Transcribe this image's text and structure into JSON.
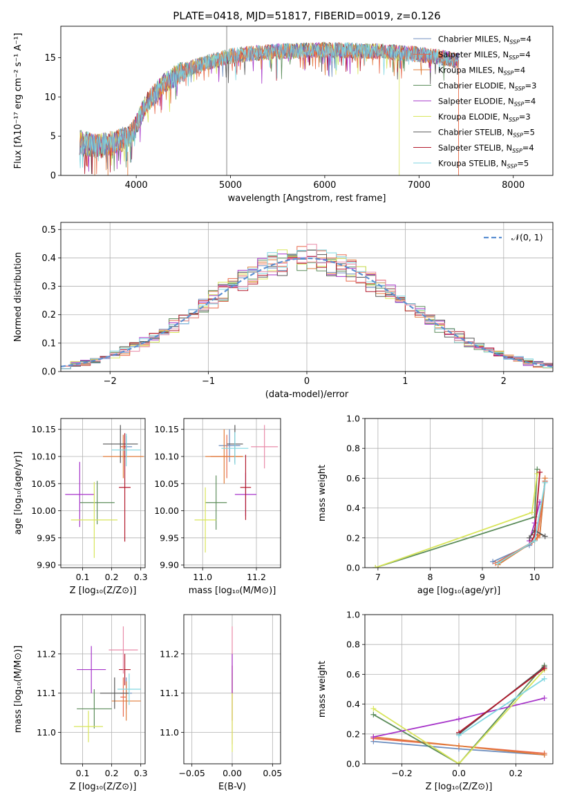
{
  "colors": {
    "series": [
      "#6c8ebf",
      "#e8684a",
      "#e07b39",
      "#5b8c5a",
      "#a633c9",
      "#d8e55a",
      "#555555",
      "#b2182b",
      "#7fd6e0"
    ],
    "normal": "#5b8fd1",
    "pink": "#e88aa8",
    "grid": "#b0b0b0"
  },
  "chart_data": [
    {
      "type": "line",
      "panel": "spectrum",
      "title": "PLATE=0418, MJD=51817, FIBERID=0019, z=0.126",
      "xlabel": "wavelength [Angstrom, rest frame]",
      "ylabel": "Flux [fλ10⁻¹⁷ erg cm⁻² s⁻¹ A⁻¹]",
      "xlim": [
        3200,
        8420
      ],
      "ylim": [
        0,
        19
      ],
      "xticks": [
        4000,
        5000,
        6000,
        7000,
        8000
      ],
      "yticks": [
        0,
        5,
        10,
        15
      ],
      "grid": false,
      "legend_position": "top-right",
      "legend": [
        {
          "model": "Chabrier MILES, N",
          "sub": "SSP",
          "tail": "=4"
        },
        {
          "model": "Salpeter MILES, N",
          "sub": "SSP",
          "tail": "=4"
        },
        {
          "model": "Kroupa MILES, N",
          "sub": "SSP",
          "tail": "=4"
        },
        {
          "model": "Chabrier ELODIE, N",
          "sub": "SSP",
          "tail": "=3"
        },
        {
          "model": "Salpeter ELODIE, N",
          "sub": "SSP",
          "tail": "=4"
        },
        {
          "model": "Kroupa ELODIE, N",
          "sub": "SSP",
          "tail": "=3"
        },
        {
          "model": "Chabrier STELIB, N",
          "sub": "SSP",
          "tail": "=5"
        },
        {
          "model": "Salpeter STELIB, N",
          "sub": "SSP",
          "tail": "=4"
        },
        {
          "model": "Kroupa STELIB, N",
          "sub": "SSP",
          "tail": "=5"
        }
      ],
      "continuum": {
        "x": [
          3400,
          3600,
          3800,
          3950,
          4100,
          4300,
          4500,
          4700,
          5000,
          5200,
          5500,
          5800,
          6000,
          6300,
          6600,
          7000,
          7200,
          7400
        ],
        "y": [
          4.2,
          3.7,
          4.3,
          5.1,
          9.0,
          11.8,
          13.3,
          14.2,
          15.2,
          15.5,
          15.8,
          15.9,
          16.0,
          15.9,
          15.8,
          15.4,
          15.1,
          14.6
        ]
      },
      "wavelength_range": [
        3400,
        7420
      ],
      "cutoffs": [
        6790,
        7420
      ]
    },
    {
      "type": "bar",
      "panel": "residuals",
      "xlabel": "(data-model)/error",
      "ylabel": "Normed distribution",
      "xlim": [
        -2.5,
        2.5
      ],
      "ylim": [
        0,
        0.525
      ],
      "xticks": [
        -2,
        -1,
        0,
        1,
        2
      ],
      "xtick_labels": [
        "−2",
        "−1",
        "0",
        "1",
        "2"
      ],
      "yticks": [
        0,
        0.1,
        0.2,
        0.3,
        0.4,
        0.5
      ],
      "ytick_labels": [
        "0.0",
        "0.1",
        "0.2",
        "0.3",
        "0.4",
        "0.5"
      ],
      "grid": true,
      "legend_position": "top-right",
      "legend": "𝒩(0, 1)",
      "bin_width": 0.1
    },
    {
      "type": "scatter",
      "panel": "age_vs_Z",
      "xlabel": "Z [log₁₀(Z/Z⊙)]",
      "ylabel": "age  [log₁₀(age/yr)]",
      "xlim": [
        0.025,
        0.315
      ],
      "ylim": [
        9.895,
        10.17
      ],
      "xticks": [
        0.1,
        0.2,
        0.3
      ],
      "xtick_labels": [
        "0.1",
        "0.2",
        "0.3"
      ],
      "yticks": [
        9.9,
        9.95,
        10.0,
        10.05,
        10.1,
        10.15
      ],
      "ytick_labels": [
        "9.90",
        "9.95",
        "10.00",
        "10.05",
        "10.10",
        "10.15"
      ],
      "points": [
        {
          "x": 0.25,
          "xerr": 0.02,
          "y": 10.118,
          "yerr": 0.02
        },
        {
          "x": 0.24,
          "xerr": 0.01,
          "y": 10.118,
          "yerr": 0.022
        },
        {
          "x": 0.24,
          "xerr": 0.07,
          "y": 10.1,
          "yerr": 0.04
        },
        {
          "x": 0.15,
          "xerr": 0.06,
          "y": 10.015,
          "yerr": 0.04
        },
        {
          "x": 0.09,
          "xerr": 0.05,
          "y": 10.03,
          "yerr": 0.06
        },
        {
          "x": 0.14,
          "xerr": 0.08,
          "y": 9.983,
          "yerr": 0.07
        },
        {
          "x": 0.23,
          "xerr": 0.06,
          "y": 10.123,
          "yerr": 0.035
        },
        {
          "x": 0.245,
          "xerr": 0.02,
          "y": 10.043,
          "yerr": 0.1
        },
        {
          "x": 0.25,
          "xerr": 0.05,
          "y": 10.112,
          "yerr": 0.03
        }
      ]
    },
    {
      "type": "scatter",
      "panel": "age_vs_mass",
      "xlabel": "mass [log₁₀(M/M⊙)]",
      "ylabel": "",
      "xlim": [
        10.93,
        11.29
      ],
      "ylim": [
        9.895,
        10.17
      ],
      "xticks": [
        11.0,
        11.2
      ],
      "xtick_labels": [
        "11.0",
        "11.2"
      ],
      "yticks": [
        9.9,
        9.95,
        10.0,
        10.05,
        10.1,
        10.15
      ],
      "ytick_labels": [
        "9.90",
        "9.95",
        "10.00",
        "10.05",
        "10.10",
        "10.15"
      ],
      "points": [
        {
          "x": 11.1,
          "xerr": 0.04,
          "y": 10.12,
          "yerr": 0.03
        },
        {
          "x": 11.09,
          "xerr": 0.06,
          "y": 10.1,
          "yerr": 0.04
        },
        {
          "x": 11.08,
          "xerr": 0.07,
          "y": 10.1,
          "yerr": 0.05
        },
        {
          "x": 11.05,
          "xerr": 0.04,
          "y": 10.015,
          "yerr": 0.05
        },
        {
          "x": 11.16,
          "xerr": 0.04,
          "y": 10.03,
          "yerr": 0.04
        },
        {
          "x": 11.01,
          "xerr": 0.04,
          "y": 9.983,
          "yerr": 0.06
        },
        {
          "x": 11.12,
          "xerr": 0.03,
          "y": 10.123,
          "yerr": 0.035
        },
        {
          "x": 11.16,
          "xerr": 0.02,
          "y": 10.043,
          "yerr": 0.06
        },
        {
          "x": 11.12,
          "xerr": 0.05,
          "y": 10.115,
          "yerr": 0.03
        },
        {
          "x": 11.23,
          "xerr": 0.05,
          "y": 10.118,
          "yerr": 0.04
        }
      ]
    },
    {
      "type": "line",
      "panel": "mass_weight_vs_age",
      "xlabel": "age  [log₁₀(age/yr)]",
      "ylabel": "mass weight",
      "xlim": [
        6.75,
        10.35
      ],
      "ylim": [
        0,
        1.0
      ],
      "xticks": [
        7,
        8,
        9,
        10
      ],
      "xtick_labels": [
        "7",
        "8",
        "9",
        "10"
      ],
      "yticks": [
        0,
        0.2,
        0.4,
        0.6,
        0.8,
        1.0
      ],
      "ytick_labels": [
        "0.0",
        "0.2",
        "0.4",
        "0.6",
        "0.8",
        "1.0"
      ],
      "series": [
        {
          "x": [
            9.2,
            9.9,
            10.1,
            10.2
          ],
          "y": [
            0.04,
            0.15,
            0.22,
            0.58
          ]
        },
        {
          "x": [
            9.25,
            9.95,
            10.05,
            10.2
          ],
          "y": [
            0.03,
            0.17,
            0.2,
            0.58
          ]
        },
        {
          "x": [
            9.3,
            10.0,
            10.1,
            10.2
          ],
          "y": [
            0.02,
            0.18,
            0.22,
            0.6
          ]
        },
        {
          "x": [
            6.95,
            10.0,
            10.05
          ],
          "y": [
            0.0,
            0.34,
            0.66
          ]
        },
        {
          "x": [
            9.9,
            10.0,
            10.1
          ],
          "y": [
            0.18,
            0.3,
            0.44
          ]
        },
        {
          "x": [
            6.95,
            9.95,
            10.05
          ],
          "y": [
            0.0,
            0.37,
            0.63
          ]
        },
        {
          "x": [
            9.9,
            10.0,
            10.2
          ],
          "y": [
            0.2,
            0.25,
            0.21
          ]
        },
        {
          "x": [
            9.95,
            10.0,
            10.1
          ],
          "y": [
            0.18,
            0.22,
            0.64
          ]
        },
        {
          "x": [
            9.3,
            10.0,
            10.2
          ],
          "y": [
            0.03,
            0.18,
            0.57
          ]
        }
      ]
    },
    {
      "type": "scatter",
      "panel": "mass_vs_Z",
      "xlabel": "Z [log₁₀(Z/Z⊙)]",
      "ylabel": "mass [log₁₀(M/M⊙)]",
      "xlim": [
        0.025,
        0.315
      ],
      "ylim": [
        10.92,
        11.3
      ],
      "xticks": [
        0.1,
        0.2,
        0.3
      ],
      "xtick_labels": [
        "0.1",
        "0.2",
        "0.3"
      ],
      "yticks": [
        11.0,
        11.1,
        11.2
      ],
      "ytick_labels": [
        "11.0",
        "11.1",
        "11.2"
      ],
      "points": [
        {
          "x": 0.25,
          "xerr": 0.02,
          "y": 11.1,
          "yerr": 0.04
        },
        {
          "x": 0.24,
          "xerr": 0.01,
          "y": 11.09,
          "yerr": 0.05
        },
        {
          "x": 0.25,
          "xerr": 0.05,
          "y": 11.08,
          "yerr": 0.05
        },
        {
          "x": 0.14,
          "xerr": 0.06,
          "y": 11.06,
          "yerr": 0.05
        },
        {
          "x": 0.13,
          "xerr": 0.05,
          "y": 11.16,
          "yerr": 0.06
        },
        {
          "x": 0.12,
          "xerr": 0.05,
          "y": 11.015,
          "yerr": 0.04
        },
        {
          "x": 0.21,
          "xerr": 0.05,
          "y": 11.1,
          "yerr": 0.04
        },
        {
          "x": 0.245,
          "xerr": 0.02,
          "y": 11.16,
          "yerr": 0.04
        },
        {
          "x": 0.26,
          "xerr": 0.04,
          "y": 11.11,
          "yerr": 0.04
        },
        {
          "x": 0.24,
          "xerr": 0.05,
          "y": 11.21,
          "yerr": 0.06
        }
      ]
    },
    {
      "type": "scatter",
      "panel": "mass_vs_EBV",
      "xlabel": "E(B-V)",
      "ylabel": "",
      "xlim": [
        -0.06,
        0.06
      ],
      "ylim": [
        10.92,
        11.3
      ],
      "xticks": [
        -0.05,
        0.0,
        0.05
      ],
      "xtick_labels": [
        "−0.05",
        "0.00",
        "0.05"
      ],
      "yticks": [
        11.0,
        11.1,
        11.2
      ],
      "ytick_labels": [
        "11.0",
        "11.1",
        "11.2"
      ],
      "points": [
        {
          "x": 0.0,
          "y": 11.12,
          "yerr": 0.15
        },
        {
          "x": 0.0,
          "y": 11.1,
          "yerr": 0.07
        },
        {
          "x": 0.0,
          "y": 11.05,
          "yerr": 0.1
        },
        {
          "x": 0.0,
          "y": 11.15,
          "yerr": 0.05
        }
      ]
    },
    {
      "type": "line",
      "panel": "mass_weight_vs_Z",
      "xlabel": "Z [log₁₀(Z/Z⊙)]",
      "ylabel": "mass weight",
      "xlim": [
        -0.33,
        0.33
      ],
      "ylim": [
        0,
        1.0
      ],
      "xticks": [
        -0.2,
        0.0,
        0.2
      ],
      "xtick_labels": [
        "−0.2",
        "0.0",
        "0.2"
      ],
      "yticks": [
        0,
        0.2,
        0.4,
        0.6,
        0.8,
        1.0
      ],
      "ytick_labels": [
        "0.0",
        "0.2",
        "0.4",
        "0.6",
        "0.8",
        "1.0"
      ],
      "series": [
        {
          "x": [
            -0.3,
            0.0,
            0.3
          ],
          "y": [
            0.15,
            0.1,
            0.06
          ]
        },
        {
          "x": [
            -0.3,
            0.0,
            0.3
          ],
          "y": [
            0.17,
            0.12,
            0.07
          ]
        },
        {
          "x": [
            -0.3,
            0.0,
            0.3
          ],
          "y": [
            0.18,
            0.12,
            0.06
          ]
        },
        {
          "x": [
            -0.3,
            0.0,
            0.3
          ],
          "y": [
            0.33,
            0.0,
            0.66
          ]
        },
        {
          "x": [
            -0.3,
            0.0,
            0.3
          ],
          "y": [
            0.18,
            0.3,
            0.44
          ]
        },
        {
          "x": [
            -0.3,
            0.0,
            0.3
          ],
          "y": [
            0.37,
            0.0,
            0.63
          ]
        },
        {
          "x": [
            0.0,
            0.3
          ],
          "y": [
            0.2,
            0.65
          ]
        },
        {
          "x": [
            0.0,
            0.3
          ],
          "y": [
            0.21,
            0.64
          ]
        },
        {
          "x": [
            0.0,
            0.3
          ],
          "y": [
            0.19,
            0.57
          ]
        }
      ]
    }
  ]
}
